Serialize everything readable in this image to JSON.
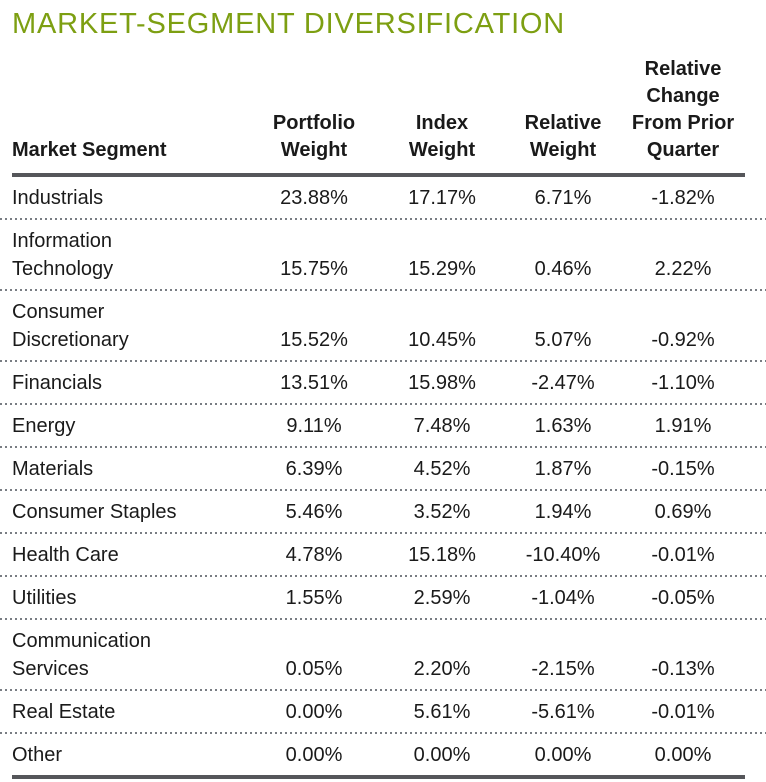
{
  "title": "MARKET-SEGMENT DIVERSIFICATION",
  "colors": {
    "title_green": "#7d9f12",
    "body_text": "#1a1a1a",
    "heavy_rule": "#55565a",
    "dotted_separator": "#797d83"
  },
  "table": {
    "columns": [
      {
        "key": "segment",
        "label": "Market Segment"
      },
      {
        "key": "portfolio_weight",
        "label": "Portfolio\nWeight"
      },
      {
        "key": "index_weight",
        "label": "Index\nWeight"
      },
      {
        "key": "relative_weight",
        "label": "Relative\nWeight"
      },
      {
        "key": "relative_change",
        "label": "Relative\nChange\nFrom Prior\nQuarter"
      }
    ],
    "rows": [
      {
        "segment": "Industrials",
        "portfolio_weight": "23.88%",
        "index_weight": "17.17%",
        "relative_weight": "6.71%",
        "relative_change": "-1.82%"
      },
      {
        "segment": "Information\nTechnology",
        "portfolio_weight": "15.75%",
        "index_weight": "15.29%",
        "relative_weight": "0.46%",
        "relative_change": "2.22%"
      },
      {
        "segment": "Consumer\nDiscretionary",
        "portfolio_weight": "15.52%",
        "index_weight": "10.45%",
        "relative_weight": "5.07%",
        "relative_change": "-0.92%"
      },
      {
        "segment": "Financials",
        "portfolio_weight": "13.51%",
        "index_weight": "15.98%",
        "relative_weight": "-2.47%",
        "relative_change": "-1.10%"
      },
      {
        "segment": "Energy",
        "portfolio_weight": "9.11%",
        "index_weight": "7.48%",
        "relative_weight": "1.63%",
        "relative_change": "1.91%"
      },
      {
        "segment": "Materials",
        "portfolio_weight": "6.39%",
        "index_weight": "4.52%",
        "relative_weight": "1.87%",
        "relative_change": "-0.15%"
      },
      {
        "segment": "Consumer Staples",
        "portfolio_weight": "5.46%",
        "index_weight": "3.52%",
        "relative_weight": "1.94%",
        "relative_change": "0.69%"
      },
      {
        "segment": "Health Care",
        "portfolio_weight": "4.78%",
        "index_weight": "15.18%",
        "relative_weight": "-10.40%",
        "relative_change": "-0.01%"
      },
      {
        "segment": "Utilities",
        "portfolio_weight": "1.55%",
        "index_weight": "2.59%",
        "relative_weight": "-1.04%",
        "relative_change": "-0.05%"
      },
      {
        "segment": "Communication\nServices",
        "portfolio_weight": "0.05%",
        "index_weight": "2.20%",
        "relative_weight": "-2.15%",
        "relative_change": "-0.13%"
      },
      {
        "segment": "Real Estate",
        "portfolio_weight": "0.00%",
        "index_weight": "5.61%",
        "relative_weight": "-5.61%",
        "relative_change": "-0.01%"
      },
      {
        "segment": "Other",
        "portfolio_weight": "0.00%",
        "index_weight": "0.00%",
        "relative_weight": "0.00%",
        "relative_change": "0.00%"
      }
    ]
  }
}
